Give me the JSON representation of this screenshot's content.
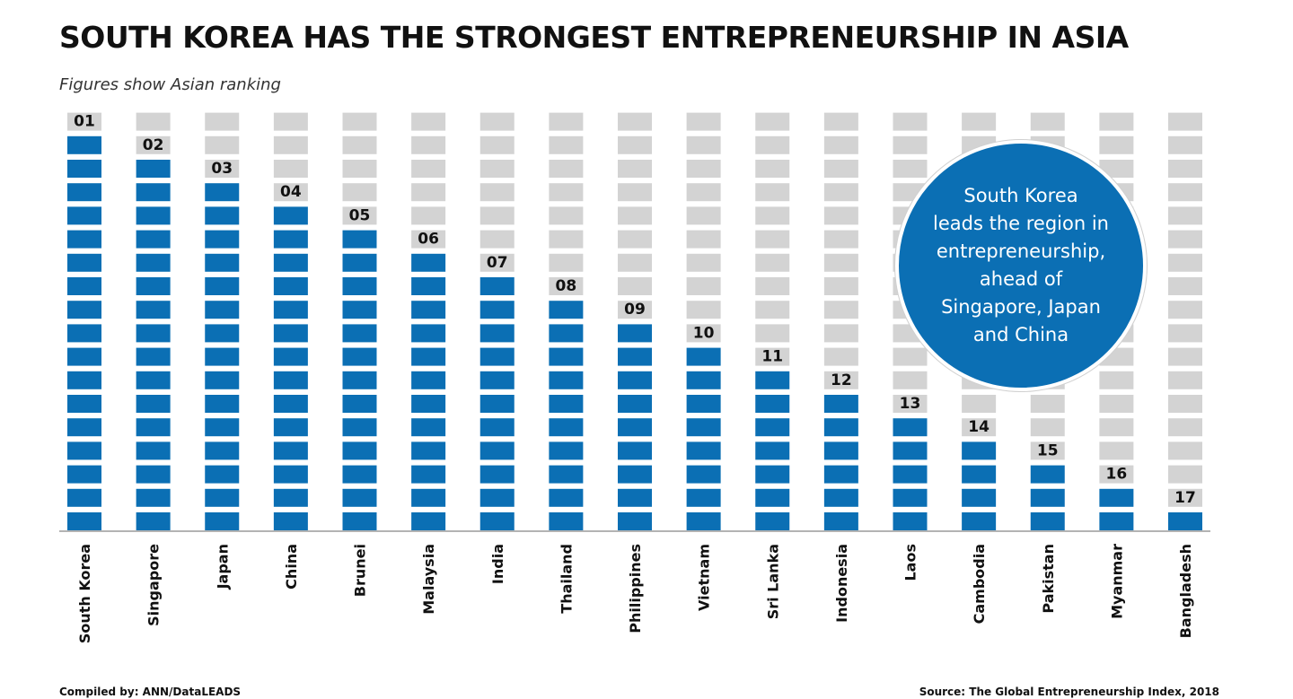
{
  "title": "SOUTH KOREA HAS THE STRONGEST ENTREPRENEURSHIP IN ASIA",
  "subtitle": "Figures show Asian ranking",
  "callout": "South Korea\nleads the region in\nentrepreneurship,\nahead of\nSingapore, Japan\nand China",
  "footer": {
    "compiled": "Compiled by: ANN/DataLEADS",
    "source": "Source: The Global Entrepreneurship Index, 2018"
  },
  "colors": {
    "filled": "#0b6fb4",
    "empty": "#d3d3d3",
    "callout": "#0b6fb4"
  },
  "chart_data": {
    "type": "bar",
    "categories": [
      "South Korea",
      "Singapore",
      "Japan",
      "China",
      "Brunei",
      "Malaysia",
      "India",
      "Thailand",
      "Philippines",
      "Vietnam",
      "Sri Lanka",
      "Indonesia",
      "Laos",
      "Cambodia",
      "Pakistan",
      "Myanmar",
      "Bangladesh"
    ],
    "values": [
      1,
      2,
      3,
      4,
      5,
      6,
      7,
      8,
      9,
      10,
      11,
      12,
      13,
      14,
      15,
      16,
      17
    ],
    "labels": [
      "01",
      "02",
      "03",
      "04",
      "05",
      "06",
      "07",
      "08",
      "09",
      "10",
      "11",
      "12",
      "13",
      "14",
      "15",
      "16",
      "17"
    ],
    "title": "SOUTH KOREA HAS THE STRONGEST ENTREPRENEURSHIP IN ASIA",
    "subtitle": "Figures show Asian ranking",
    "xlabel": "",
    "ylabel": "",
    "ranking_scale": 18,
    "grid": false,
    "legend": "none"
  }
}
